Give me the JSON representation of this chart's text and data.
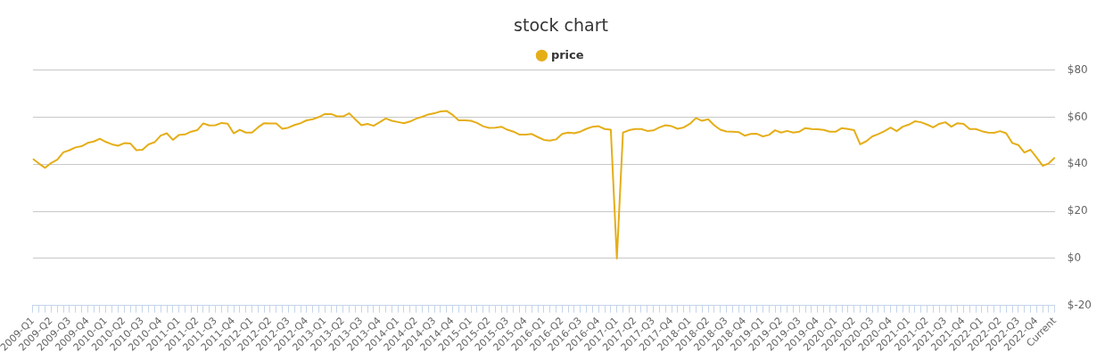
{
  "chart_data": {
    "type": "line",
    "title": "stock chart",
    "categories": [
      "2009-Q1",
      null,
      null,
      "2009-Q2",
      null,
      null,
      "2009-Q3",
      null,
      null,
      "2009-Q4",
      null,
      null,
      "2010-Q1",
      null,
      null,
      "2010-Q2",
      null,
      null,
      "2010-Q3",
      null,
      null,
      "2010-Q4",
      null,
      null,
      "2011-Q1",
      null,
      null,
      "2011-Q2",
      null,
      null,
      "2011-Q3",
      null,
      null,
      "2011-Q4",
      null,
      null,
      "2012-Q1",
      null,
      null,
      "2012-Q2",
      null,
      null,
      "2012-Q3",
      null,
      null,
      "2012-Q4",
      null,
      null,
      "2013-Q1",
      null,
      null,
      "2013-Q2",
      null,
      null,
      "2013-Q3",
      null,
      null,
      "2013-Q4",
      null,
      null,
      "2014-Q1",
      null,
      null,
      "2014-Q2",
      null,
      null,
      "2014-Q3",
      null,
      null,
      "2014-Q4",
      null,
      null,
      "2015-Q1",
      null,
      null,
      "2015-Q2",
      null,
      null,
      "2015-Q3",
      null,
      null,
      "2015-Q4",
      null,
      null,
      "2016-Q1",
      null,
      null,
      "2016-Q2",
      null,
      null,
      "2016-Q3",
      null,
      null,
      "2016-Q4",
      null,
      null,
      "2017-Q1",
      null,
      null,
      "2017-Q2",
      null,
      null,
      "2017-Q3",
      null,
      null,
      "2017-Q4",
      null,
      null,
      "2018-Q1",
      null,
      null,
      "2018-Q2",
      null,
      null,
      "2018-Q3",
      null,
      null,
      "2018-Q4",
      null,
      null,
      "2019-Q1",
      null,
      null,
      "2019-Q2",
      null,
      null,
      "2019-Q3",
      null,
      null,
      "2019-Q4",
      null,
      null,
      "2020-Q1",
      null,
      null,
      "2020-Q2",
      null,
      null,
      "2020-Q3",
      null,
      null,
      "2020-Q4",
      null,
      null,
      "2021-Q1",
      null,
      null,
      "2021-Q2",
      null,
      null,
      "2021-Q3",
      null,
      null,
      "2021-Q4",
      null,
      null,
      "2022-Q1",
      null,
      null,
      "2022-Q2",
      null,
      null,
      "2022-Q3",
      null,
      null,
      "2022-Q4",
      null,
      null,
      "Current"
    ],
    "series": [
      {
        "name": "price",
        "color": "#e5ae18",
        "values": [
          42.3,
          40.3,
          38.5,
          40.6,
          42,
          45.1,
          46,
          47.2,
          47.7,
          49.1,
          49.7,
          50.9,
          49.5,
          48.5,
          47.9,
          49,
          48.9,
          46,
          46.2,
          48.5,
          49.4,
          52.2,
          53.2,
          50.4,
          52.5,
          52.7,
          53.9,
          54.5,
          57.4,
          56.5,
          56.6,
          57.6,
          57.3,
          53.2,
          54.7,
          53.5,
          53.5,
          55.7,
          57.5,
          57.4,
          57.4,
          55.1,
          55.6,
          56.7,
          57.5,
          58.7,
          59.2,
          60.1,
          61.4,
          61.4,
          60.4,
          60.4,
          61.7,
          59.1,
          56.6,
          57.2,
          56.4,
          57.9,
          59.5,
          58.5,
          58,
          57.5,
          58.2,
          59.4,
          60.2,
          61.2,
          61.7,
          62.5,
          62.7,
          61,
          58.7,
          58.7,
          58.5,
          57.6,
          56.2,
          55.5,
          55.6,
          56,
          54.7,
          53.9,
          52.6,
          52.6,
          52.9,
          51.6,
          50.4,
          50.1,
          50.6,
          52.9,
          53.5,
          53.2,
          53.9,
          55.1,
          56,
          56.2,
          55,
          54.7,
          0,
          53.5,
          54.5,
          55,
          55,
          54.2,
          54.4,
          55.7,
          56.6,
          56.2,
          55.1,
          55.7,
          57.2,
          59.7,
          58.5,
          59.2,
          56.6,
          54.7,
          54,
          53.9,
          53.7,
          52.2,
          52.9,
          53,
          51.9,
          52.5,
          54.5,
          53.5,
          54.2,
          53.5,
          53.9,
          55.4,
          55,
          54.9,
          54.6,
          53.9,
          53.9,
          55.4,
          55,
          54.5,
          48.5,
          49.8,
          51.9,
          52.9,
          54.1,
          55.6,
          54.1,
          56,
          56.9,
          58.3,
          57.9,
          56.9,
          55.7,
          57.2,
          57.9,
          56,
          57.5,
          57.2,
          55,
          55,
          54.1,
          53.5,
          53.4,
          54.1,
          53.2,
          49.1,
          48.2,
          45,
          46.2,
          42.9,
          39.4,
          40.4,
          42.9
        ]
      }
    ],
    "ylim": [
      -20,
      80
    ],
    "yticks": [
      {
        "value": -20,
        "label": "$-20"
      },
      {
        "value": 0,
        "label": "$0"
      },
      {
        "value": 20,
        "label": "$20"
      },
      {
        "value": 40,
        "label": "$40"
      },
      {
        "value": 60,
        "label": "$60"
      },
      {
        "value": 80,
        "label": "$80"
      }
    ],
    "grid": "y",
    "legend": "top",
    "marker": "none",
    "line_style": "solid"
  }
}
